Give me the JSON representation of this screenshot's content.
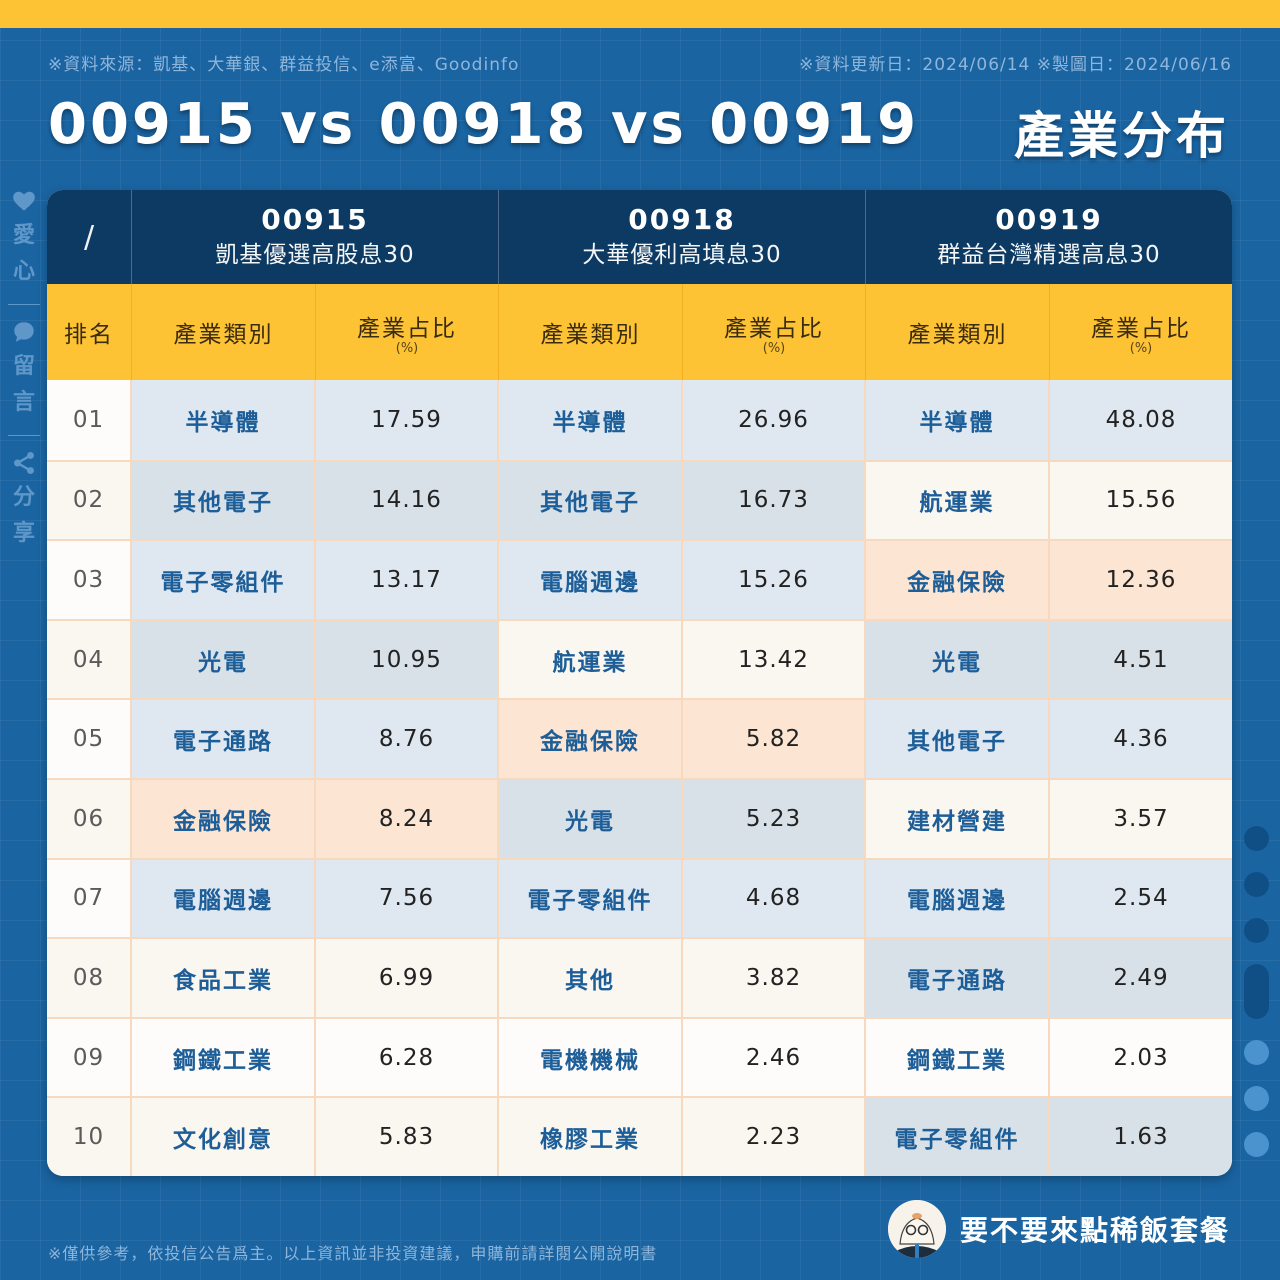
{
  "header": {
    "source": "※資料來源：凱基、大華銀、群益投信、e添富、Goodinfo",
    "dates": "※資料更新日：2024/06/14  ※製圖日：2024/06/16",
    "title": "00915 vs 00918 vs 00919",
    "section": "產業分布"
  },
  "side_bar": {
    "items": [
      {
        "icon": "heart-icon",
        "label_1": "愛",
        "label_2": "心"
      },
      {
        "icon": "comment-icon",
        "label_1": "留",
        "label_2": "言"
      },
      {
        "icon": "share-icon",
        "label_1": "分",
        "label_2": "享"
      }
    ]
  },
  "table": {
    "corner": "/",
    "funds": [
      {
        "code": "00915",
        "name": "凱基優選高股息30"
      },
      {
        "code": "00918",
        "name": "大華優利高填息30"
      },
      {
        "code": "00919",
        "name": "群益台灣精選高息30"
      }
    ],
    "sub_headers": {
      "rank": "排名",
      "industry": "產業類別",
      "share": "產業占比",
      "unit": "(%)"
    },
    "rows": [
      {
        "rank": "01",
        "f1": {
          "ind": "半導體",
          "val": "17.59",
          "tone": "blue"
        },
        "f2": {
          "ind": "半導體",
          "val": "26.96",
          "tone": "blue"
        },
        "f3": {
          "ind": "半導體",
          "val": "48.08",
          "tone": "blue"
        },
        "rank_tone": "white"
      },
      {
        "rank": "02",
        "f1": {
          "ind": "其他電子",
          "val": "14.16",
          "tone": "gray"
        },
        "f2": {
          "ind": "其他電子",
          "val": "16.73",
          "tone": "gray"
        },
        "f3": {
          "ind": "航運業",
          "val": "15.56",
          "tone": "cream"
        },
        "rank_tone": "cream"
      },
      {
        "rank": "03",
        "f1": {
          "ind": "電子零組件",
          "val": "13.17",
          "tone": "blue"
        },
        "f2": {
          "ind": "電腦週邊",
          "val": "15.26",
          "tone": "blue"
        },
        "f3": {
          "ind": "金融保險",
          "val": "12.36",
          "tone": "peach"
        },
        "rank_tone": "white"
      },
      {
        "rank": "04",
        "f1": {
          "ind": "光電",
          "val": "10.95",
          "tone": "gray"
        },
        "f2": {
          "ind": "航運業",
          "val": "13.42",
          "tone": "cream"
        },
        "f3": {
          "ind": "光電",
          "val": "4.51",
          "tone": "gray"
        },
        "rank_tone": "cream"
      },
      {
        "rank": "05",
        "f1": {
          "ind": "電子通路",
          "val": "8.76",
          "tone": "blue"
        },
        "f2": {
          "ind": "金融保險",
          "val": "5.82",
          "tone": "peach"
        },
        "f3": {
          "ind": "其他電子",
          "val": "4.36",
          "tone": "blue"
        },
        "rank_tone": "white"
      },
      {
        "rank": "06",
        "f1": {
          "ind": "金融保險",
          "val": "8.24",
          "tone": "peach"
        },
        "f2": {
          "ind": "光電",
          "val": "5.23",
          "tone": "gray"
        },
        "f3": {
          "ind": "建材營建",
          "val": "3.57",
          "tone": "cream"
        },
        "rank_tone": "cream"
      },
      {
        "rank": "07",
        "f1": {
          "ind": "電腦週邊",
          "val": "7.56",
          "tone": "blue"
        },
        "f2": {
          "ind": "電子零組件",
          "val": "4.68",
          "tone": "blue"
        },
        "f3": {
          "ind": "電腦週邊",
          "val": "2.54",
          "tone": "blue"
        },
        "rank_tone": "white"
      },
      {
        "rank": "08",
        "f1": {
          "ind": "食品工業",
          "val": "6.99",
          "tone": "cream"
        },
        "f2": {
          "ind": "其他",
          "val": "3.82",
          "tone": "cream"
        },
        "f3": {
          "ind": "電子通路",
          "val": "2.49",
          "tone": "gray"
        },
        "rank_tone": "cream"
      },
      {
        "rank": "09",
        "f1": {
          "ind": "鋼鐵工業",
          "val": "6.28",
          "tone": "white"
        },
        "f2": {
          "ind": "電機機械",
          "val": "2.46",
          "tone": "white"
        },
        "f3": {
          "ind": "鋼鐵工業",
          "val": "2.03",
          "tone": "white"
        },
        "rank_tone": "white"
      },
      {
        "rank": "10",
        "f1": {
          "ind": "文化創意",
          "val": "5.83",
          "tone": "cream"
        },
        "f2": {
          "ind": "橡膠工業",
          "val": "2.23",
          "tone": "cream"
        },
        "f3": {
          "ind": "電子零組件",
          "val": "1.63",
          "tone": "gray"
        },
        "rank_tone": "cream"
      }
    ]
  },
  "footer": {
    "disclaimer": "※僅供參考，依投信公告爲主。以上資訊並非投資建議，申購前請詳閱公開說明書",
    "brand_name": "要不要來點稀飯套餐"
  },
  "colors": {
    "accent_yellow": "#fec235",
    "background_blue": "#1a64a2",
    "header_navy": "#0c3a62",
    "industry_text": "#1d5e98"
  }
}
